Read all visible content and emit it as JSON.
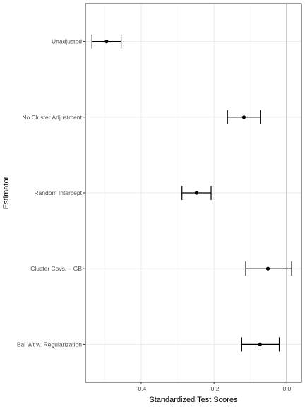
{
  "chart_data": {
    "type": "forest",
    "title": "",
    "xlabel": "Standardized Test Scores",
    "ylabel": "Estimator",
    "xlim": [
      -0.553,
      0.04
    ],
    "x_ticks": [
      -0.4,
      -0.2,
      0.0
    ],
    "x_tick_labels": [
      "-0.4",
      "-0.2",
      "0.0"
    ],
    "reference_line_x": 0.0,
    "grid": true,
    "categories": [
      "Unadjusted",
      "No Cluster Adjustment",
      "Random Intercept",
      "Cluster Covs. – GB",
      "Bal Wt w. Regularization"
    ],
    "estimates": [
      -0.495,
      -0.118,
      -0.248,
      -0.052,
      -0.074
    ],
    "lower": [
      -0.535,
      -0.163,
      -0.288,
      -0.113,
      -0.124
    ],
    "upper": [
      -0.455,
      -0.073,
      -0.208,
      0.013,
      -0.021
    ]
  }
}
